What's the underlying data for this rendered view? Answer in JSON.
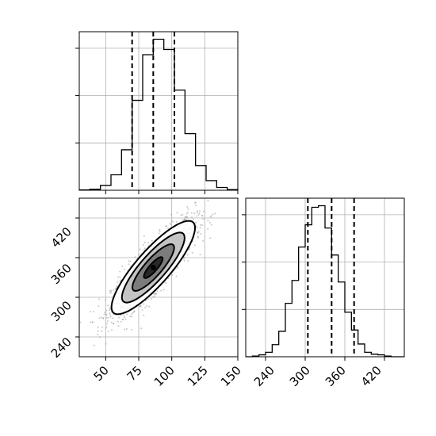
{
  "chart_data": [
    {
      "type": "bar",
      "panel": "marginal-histogram-param-1",
      "grid": true,
      "bin_edges": [
        30,
        38,
        46,
        54,
        62,
        70,
        78,
        86,
        94,
        102,
        110,
        118,
        126,
        134,
        142,
        150
      ],
      "counts": [
        1,
        3,
        14,
        45,
        118,
        262,
        395,
        440,
        410,
        292,
        165,
        72,
        28,
        8,
        2
      ],
      "quantile_lines": [
        70,
        86,
        102
      ],
      "xlim": [
        30,
        150
      ]
    },
    {
      "type": "scatter",
      "panel": "joint-density-param-1-vs-param-2",
      "grid": true,
      "xlim": [
        30,
        150
      ],
      "ylim": [
        210,
        450
      ],
      "x_ticks": [
        50,
        75,
        100,
        125,
        150
      ],
      "y_ticks": [
        240,
        300,
        360,
        420
      ],
      "center": [
        86,
        345
      ],
      "contour_levels": [
        "0.5 sigma",
        "1 sigma",
        "1.5 sigma",
        "2 sigma"
      ],
      "covariance": {
        "var_x": 250,
        "var_y": 1250,
        "cov_xy": 475
      }
    },
    {
      "type": "bar",
      "panel": "marginal-histogram-param-2",
      "grid": true,
      "bin_edges": [
        210,
        220,
        230,
        240,
        250,
        260,
        270,
        280,
        290,
        300,
        310,
        320,
        330,
        340,
        350,
        360,
        370,
        380,
        390,
        400,
        410,
        420,
        430,
        440,
        450
      ],
      "counts": [
        0,
        2,
        6,
        14,
        38,
        80,
        168,
        240,
        345,
        415,
        470,
        475,
        405,
        320,
        235,
        140,
        84,
        40,
        14,
        8,
        6,
        2,
        0,
        0
      ],
      "quantile_lines": [
        304,
        340,
        374
      ],
      "xlim": [
        210,
        450
      ],
      "x_ticks": [
        240,
        300,
        360,
        420
      ]
    }
  ],
  "labels": {
    "x1_ticks": [
      "50",
      "75",
      "100",
      "125",
      "150"
    ],
    "y2_ticks": [
      "240",
      "300",
      "360",
      "420"
    ],
    "x2_ticks": [
      "240",
      "300",
      "360",
      "420"
    ]
  }
}
